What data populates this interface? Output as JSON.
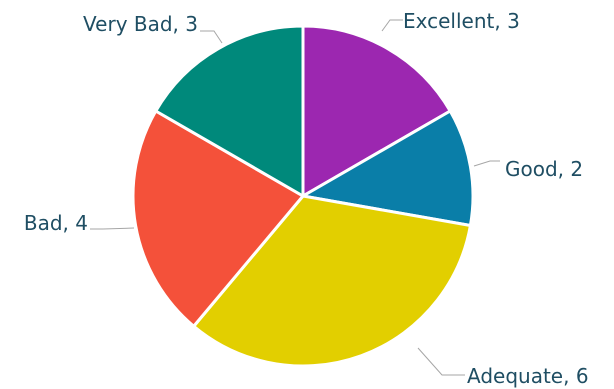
{
  "chart_data": {
    "type": "pie",
    "categories": [
      "Excellent",
      "Good",
      "Adequate",
      "Bad",
      "Very Bad"
    ],
    "values": [
      3,
      2,
      6,
      4,
      3
    ],
    "labels": [
      "Excellent, 3",
      "Good, 2",
      "Adequate, 6",
      "Bad, 4",
      "Very Bad, 3"
    ],
    "colors": [
      "#9c27b0",
      "#0a7ea8",
      "#e2cf00",
      "#f4513a",
      "#00897b"
    ],
    "legend": "none",
    "start_angle_deg": 0,
    "direction": "clockwise"
  }
}
